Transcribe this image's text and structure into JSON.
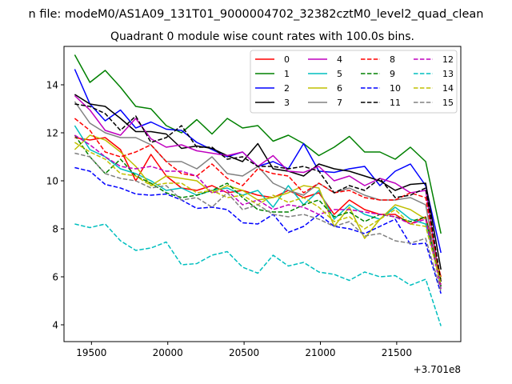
{
  "chart_data": {
    "type": "line",
    "suptitle": "n file: modeM0/AS1A09_131T01_9000004702_32382cztM0_level2_quad_clean",
    "title": "Quadrant 0 module wise count rates with 100.0s bins.",
    "xlabel": "",
    "ylabel": "",
    "x_offset_label": "+3.701e8",
    "xlim": [
      19320,
      21920
    ],
    "ylim": [
      3.3,
      15.6
    ],
    "xticks": [
      19500,
      20000,
      20500,
      21000,
      21500
    ],
    "xtick_labels": [
      "19500",
      "20000",
      "20500",
      "21000",
      "21500"
    ],
    "yticks": [
      4,
      6,
      8,
      10,
      12,
      14
    ],
    "ytick_labels": [
      "4",
      "6",
      "8",
      "10",
      "12",
      "14"
    ],
    "legend_position": "top-right",
    "x": [
      19390,
      19490,
      19590,
      19690,
      19790,
      19890,
      19990,
      20090,
      20190,
      20290,
      20390,
      20490,
      20590,
      20690,
      20790,
      20890,
      20990,
      21090,
      21190,
      21290,
      21390,
      21490,
      21590,
      21690,
      21790
    ],
    "series": [
      {
        "name": "0",
        "color": "#ff0000",
        "dash": "solid",
        "values": [
          11.8,
          11.7,
          11.8,
          11.3,
          10.0,
          11.1,
          10.2,
          9.7,
          9.6,
          9.8,
          9.5,
          9.6,
          9.4,
          9.3,
          9.6,
          9.3,
          9.5,
          8.6,
          9.2,
          8.8,
          8.6,
          8.6,
          8.2,
          8.5,
          6.0
        ]
      },
      {
        "name": "1",
        "color": "#008000",
        "dash": "solid",
        "values": [
          15.25,
          14.1,
          14.6,
          13.9,
          13.1,
          13.0,
          12.3,
          12.0,
          12.55,
          11.95,
          12.6,
          12.2,
          12.3,
          11.65,
          11.9,
          11.55,
          11.05,
          11.4,
          11.85,
          11.2,
          11.2,
          10.9,
          11.4,
          10.8,
          7.8
        ]
      },
      {
        "name": "2",
        "color": "#0000ff",
        "dash": "solid",
        "values": [
          14.65,
          13.2,
          12.5,
          12.95,
          12.2,
          12.45,
          12.15,
          12.1,
          11.6,
          11.3,
          11.0,
          11.2,
          10.6,
          10.8,
          10.5,
          11.55,
          10.4,
          10.35,
          10.5,
          10.6,
          9.8,
          10.4,
          10.7,
          9.8,
          7.0
        ]
      },
      {
        "name": "3",
        "color": "#000000",
        "dash": "solid",
        "values": [
          13.6,
          13.2,
          13.1,
          12.6,
          12.05,
          12.05,
          11.95,
          11.35,
          11.45,
          11.35,
          11.05,
          10.8,
          11.55,
          10.5,
          10.4,
          10.2,
          10.7,
          10.5,
          10.4,
          10.2,
          10.0,
          9.6,
          9.85,
          9.9,
          6.3
        ]
      },
      {
        "name": "4",
        "color": "#bf00bf",
        "dash": "solid",
        "values": [
          13.55,
          12.95,
          12.1,
          11.9,
          12.6,
          11.75,
          11.4,
          11.5,
          11.25,
          11.15,
          11.05,
          11.2,
          10.6,
          11.05,
          10.4,
          10.35,
          10.6,
          10.0,
          10.2,
          9.8,
          10.1,
          9.9,
          9.5,
          9.6,
          5.6
        ]
      },
      {
        "name": "5",
        "color": "#00bfbf",
        "dash": "solid",
        "values": [
          12.3,
          11.3,
          11.0,
          10.5,
          10.3,
          10.0,
          9.6,
          9.7,
          9.4,
          9.6,
          9.7,
          9.4,
          9.6,
          8.9,
          9.8,
          9.0,
          9.6,
          8.4,
          9.0,
          8.6,
          8.4,
          8.9,
          8.4,
          8.2,
          5.8
        ]
      },
      {
        "name": "6",
        "color": "#bfbf00",
        "dash": "solid",
        "values": [
          11.3,
          11.9,
          11.7,
          11.2,
          10.6,
          9.8,
          10.2,
          10.1,
          10.0,
          9.5,
          9.8,
          9.6,
          9.2,
          9.3,
          9.5,
          9.8,
          9.7,
          8.1,
          8.9,
          7.6,
          8.4,
          9.0,
          8.8,
          8.4,
          5.9
        ]
      },
      {
        "name": "7",
        "color": "#808080",
        "dash": "solid",
        "values": [
          13.3,
          12.4,
          12.0,
          11.8,
          11.8,
          11.5,
          10.8,
          10.8,
          10.5,
          11.0,
          10.3,
          10.2,
          10.6,
          9.9,
          9.6,
          9.4,
          9.9,
          9.5,
          9.7,
          9.4,
          9.2,
          9.2,
          9.3,
          9.0,
          5.5
        ]
      },
      {
        "name": "8",
        "color": "#ff0000",
        "dash": "dashed",
        "values": [
          12.6,
          12.1,
          11.2,
          11.0,
          11.2,
          11.5,
          10.8,
          10.3,
          10.2,
          10.7,
          10.1,
          9.8,
          10.5,
          10.3,
          10.2,
          9.5,
          9.9,
          9.5,
          9.6,
          9.3,
          9.2,
          9.2,
          9.5,
          9.3,
          5.7
        ]
      },
      {
        "name": "9",
        "color": "#008000",
        "dash": "dashed",
        "values": [
          11.9,
          11.0,
          10.3,
          10.9,
          10.2,
          9.9,
          9.5,
          9.3,
          9.4,
          9.6,
          9.9,
          9.3,
          8.8,
          8.7,
          8.7,
          9.0,
          9.2,
          8.5,
          8.7,
          8.3,
          8.6,
          8.5,
          8.3,
          8.5,
          5.6
        ]
      },
      {
        "name": "10",
        "color": "#0000ff",
        "dash": "dashed",
        "values": [
          10.55,
          10.4,
          9.85,
          9.7,
          9.45,
          9.4,
          9.45,
          9.2,
          8.85,
          8.9,
          8.8,
          8.25,
          8.2,
          8.6,
          7.85,
          8.1,
          8.6,
          8.1,
          8.0,
          7.8,
          8.1,
          8.4,
          7.35,
          7.4,
          5.3
        ]
      },
      {
        "name": "11",
        "color": "#000000",
        "dash": "dashed",
        "values": [
          13.2,
          13.1,
          12.8,
          12.1,
          12.7,
          11.6,
          11.8,
          12.3,
          11.4,
          11.4,
          10.9,
          11.0,
          10.6,
          10.6,
          10.5,
          10.6,
          10.4,
          9.5,
          9.8,
          9.6,
          10.1,
          9.3,
          9.4,
          9.7,
          5.8
        ]
      },
      {
        "name": "12",
        "color": "#bf00bf",
        "dash": "dashed",
        "values": [
          11.9,
          11.5,
          11.0,
          10.6,
          10.5,
          10.6,
          10.4,
          10.4,
          10.2,
          9.5,
          9.6,
          9.0,
          9.2,
          8.8,
          9.0,
          8.9,
          8.6,
          8.8,
          8.8,
          8.7,
          8.6,
          8.5,
          8.2,
          8.4,
          5.5
        ]
      },
      {
        "name": "13",
        "color": "#00bfbf",
        "dash": "dashed",
        "values": [
          8.2,
          8.05,
          8.2,
          7.5,
          7.1,
          7.2,
          7.45,
          6.5,
          6.55,
          6.9,
          7.05,
          6.4,
          6.15,
          6.9,
          6.45,
          6.6,
          6.2,
          6.1,
          5.85,
          6.2,
          6.0,
          6.05,
          5.65,
          5.9,
          3.95
        ]
      },
      {
        "name": "14",
        "color": "#bfbf00",
        "dash": "dashed",
        "values": [
          11.6,
          11.2,
          10.9,
          10.3,
          10.2,
          9.8,
          9.9,
          9.9,
          9.5,
          9.6,
          9.3,
          9.4,
          9.0,
          9.4,
          9.1,
          9.3,
          8.9,
          8.3,
          8.5,
          8.0,
          8.4,
          8.8,
          8.2,
          8.1,
          5.7
        ]
      },
      {
        "name": "15",
        "color": "#808080",
        "dash": "dashed",
        "values": [
          11.15,
          11.0,
          10.3,
          10.1,
          10.0,
          9.7,
          9.8,
          9.2,
          9.3,
          8.9,
          9.5,
          8.8,
          9.0,
          8.6,
          8.5,
          8.6,
          8.4,
          8.1,
          8.3,
          7.7,
          7.8,
          7.5,
          7.4,
          7.6,
          5.4
        ]
      }
    ]
  }
}
